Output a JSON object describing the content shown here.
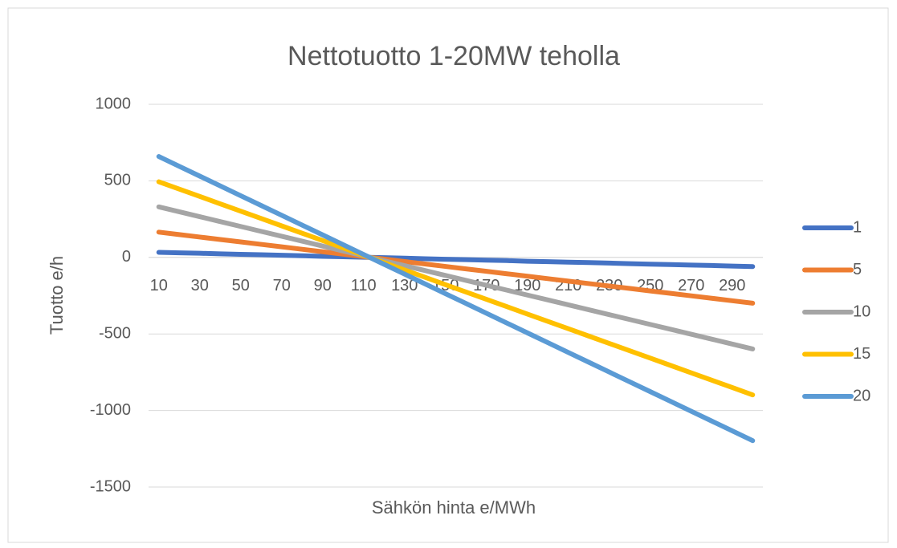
{
  "chart_data": {
    "type": "line",
    "title": "Nettotuotto 1-20MW teholla",
    "x_label": "Sähkön hinta e/MWh",
    "y_label": "Tuotto e/h",
    "categories": [
      10,
      null,
      30,
      null,
      50,
      null,
      70,
      null,
      90,
      null,
      110,
      null,
      130,
      null,
      150,
      null,
      170,
      null,
      190,
      null,
      210,
      null,
      230,
      null,
      250,
      null,
      270,
      null,
      290,
      null
    ],
    "series": [
      {
        "name": "1",
        "color": "#4472c4",
        "values": [
          33,
          30,
          27,
          23,
          20,
          17,
          14,
          11,
          7,
          4,
          1,
          -2,
          -5,
          -9,
          -12,
          -15,
          -18,
          -21,
          -25,
          -28,
          -31,
          -34,
          -37,
          -41,
          -44,
          -47,
          -50,
          -53,
          -57,
          -60
        ]
      },
      {
        "name": "5",
        "color": "#ed7d31",
        "values": [
          165,
          149,
          133,
          117,
          101,
          85,
          69,
          53,
          37,
          21,
          5,
          -11,
          -27,
          -43,
          -59,
          -75,
          -91,
          -107,
          -123,
          -139,
          -155,
          -171,
          -187,
          -203,
          -219,
          -235,
          -251,
          -267,
          -283,
          -299
        ]
      },
      {
        "name": "10",
        "color": "#a5a5a5",
        "values": [
          330,
          298,
          266,
          234,
          202,
          170,
          138,
          106,
          74,
          42,
          10,
          -22,
          -54,
          -86,
          -118,
          -150,
          -182,
          -214,
          -246,
          -278,
          -310,
          -342,
          -374,
          -406,
          -438,
          -470,
          -502,
          -534,
          -566,
          -598
        ]
      },
      {
        "name": "15",
        "color": "#ffc000",
        "values": [
          494,
          446,
          398,
          350,
          302,
          254,
          206,
          158,
          110,
          62,
          14,
          -34,
          -82,
          -130,
          -178,
          -226,
          -274,
          -322,
          -370,
          -418,
          -466,
          -514,
          -562,
          -610,
          -658,
          -706,
          -754,
          -802,
          -850,
          -898
        ]
      },
      {
        "name": "20",
        "color": "#5b9bd5",
        "values": [
          659,
          595,
          531,
          467,
          403,
          339,
          275,
          211,
          147,
          83,
          19,
          -45,
          -109,
          -173,
          -237,
          -301,
          -365,
          -429,
          -493,
          -557,
          -621,
          -685,
          -749,
          -813,
          -877,
          -941,
          -1005,
          -1069,
          -1133,
          -1197
        ]
      }
    ],
    "ylim": [
      -1500,
      1000
    ],
    "yticks": [
      1000,
      500,
      0,
      -500,
      -1000,
      -1500
    ],
    "grid": true,
    "legend": "right"
  }
}
